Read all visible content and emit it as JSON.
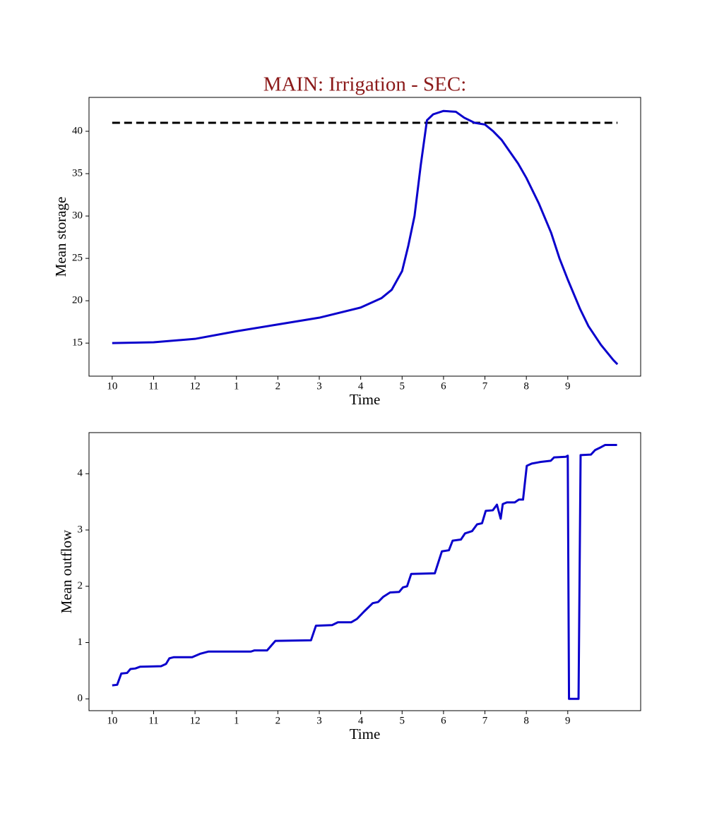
{
  "chart_data": [
    {
      "type": "line",
      "title": "MAIN: Irrigation - SEC:",
      "title_color": "#8b1a1a",
      "x_label": "Time",
      "y_label": "Mean storage",
      "x": [
        0,
        1,
        2,
        3,
        4,
        5,
        6,
        6.5,
        6.75,
        7,
        7.15,
        7.3,
        7.45,
        7.6,
        7.75,
        8,
        8.3,
        8.5,
        8.75,
        9,
        9.2,
        9.4,
        9.6,
        9.8,
        10,
        10.3,
        10.6,
        10.8,
        11,
        11.3,
        11.5,
        11.8,
        12.1,
        12.2
      ],
      "series": [
        {
          "color": "#0a00cc",
          "values": [
            15.0,
            15.1,
            15.5,
            16.4,
            17.2,
            18.0,
            19.2,
            20.3,
            21.3,
            23.5,
            26.5,
            30,
            36,
            41.3,
            42.0,
            42.4,
            42.3,
            41.6,
            41.0,
            40.8,
            40.0,
            39.0,
            37.6,
            36.2,
            34.5,
            31.5,
            28.0,
            25,
            22.5,
            19.0,
            17.0,
            14.8,
            13.0,
            12.5
          ]
        }
      ],
      "reference_line": {
        "y": 41,
        "x": [
          0,
          12.2
        ],
        "color": "#000000",
        "dashed": true
      },
      "xlim": [
        -0.56,
        12.76
      ],
      "ylim": [
        11.1,
        44
      ],
      "xticks": [
        {
          "value": 0,
          "label": "10"
        },
        {
          "value": 1,
          "label": "11"
        },
        {
          "value": 2,
          "label": "12"
        },
        {
          "value": 3,
          "label": "1"
        },
        {
          "value": 4,
          "label": "2"
        },
        {
          "value": 5,
          "label": "3"
        },
        {
          "value": 6,
          "label": "4"
        },
        {
          "value": 7,
          "label": "5"
        },
        {
          "value": 8,
          "label": "6"
        },
        {
          "value": 9,
          "label": "7"
        },
        {
          "value": 10,
          "label": "8"
        },
        {
          "value": 11,
          "label": "9"
        }
      ],
      "yticks": [
        15,
        20,
        25,
        30,
        35,
        40
      ]
    },
    {
      "type": "line",
      "x_label": "Time",
      "y_label": "Mean outflow",
      "x": [
        0,
        0.12,
        0.22,
        0.36,
        0.44,
        0.56,
        0.67,
        1.18,
        1.3,
        1.38,
        1.49,
        1.93,
        2.12,
        2.32,
        3.35,
        3.43,
        3.74,
        3.94,
        4.8,
        4.92,
        5.31,
        5.45,
        5.77,
        5.91,
        6.08,
        6.29,
        6.42,
        6.54,
        6.71,
        6.93,
        7.02,
        7.12,
        7.22,
        7.79,
        7.96,
        8.13,
        8.22,
        8.42,
        8.52,
        8.69,
        8.81,
        8.93,
        9.02,
        9.19,
        9.29,
        9.38,
        9.43,
        9.53,
        9.72,
        9.82,
        9.92,
        10.01,
        10.13,
        10.35,
        10.59,
        10.67,
        10.95,
        11.0,
        11.03,
        11.26,
        11.31,
        11.56,
        11.66,
        11.8,
        11.9,
        12.19
      ],
      "series": [
        {
          "color": "#0a00cc",
          "values": [
            0.24,
            0.25,
            0.45,
            0.46,
            0.53,
            0.54,
            0.57,
            0.58,
            0.62,
            0.72,
            0.74,
            0.74,
            0.8,
            0.84,
            0.84,
            0.86,
            0.86,
            1.03,
            1.04,
            1.3,
            1.31,
            1.36,
            1.36,
            1.42,
            1.55,
            1.7,
            1.72,
            1.81,
            1.89,
            1.9,
            1.98,
            2.0,
            2.22,
            2.23,
            2.62,
            2.64,
            2.81,
            2.83,
            2.94,
            2.98,
            3.1,
            3.12,
            3.34,
            3.35,
            3.45,
            3.2,
            3.46,
            3.49,
            3.49,
            3.54,
            3.54,
            4.14,
            4.18,
            4.21,
            4.23,
            4.29,
            4.3,
            4.32,
            0.0,
            0.0,
            4.33,
            4.34,
            4.42,
            4.47,
            4.51,
            4.51
          ]
        }
      ],
      "xlim": [
        -0.56,
        12.76
      ],
      "ylim": [
        -0.21,
        4.73
      ],
      "xticks": [
        {
          "value": 0,
          "label": "10"
        },
        {
          "value": 1,
          "label": "11"
        },
        {
          "value": 2,
          "label": "12"
        },
        {
          "value": 3,
          "label": "1"
        },
        {
          "value": 4,
          "label": "2"
        },
        {
          "value": 5,
          "label": "3"
        },
        {
          "value": 6,
          "label": "4"
        },
        {
          "value": 7,
          "label": "5"
        },
        {
          "value": 8,
          "label": "6"
        },
        {
          "value": 9,
          "label": "7"
        },
        {
          "value": 10,
          "label": "8"
        },
        {
          "value": 11,
          "label": "9"
        }
      ],
      "yticks": [
        0,
        1,
        2,
        3,
        4
      ]
    }
  ]
}
